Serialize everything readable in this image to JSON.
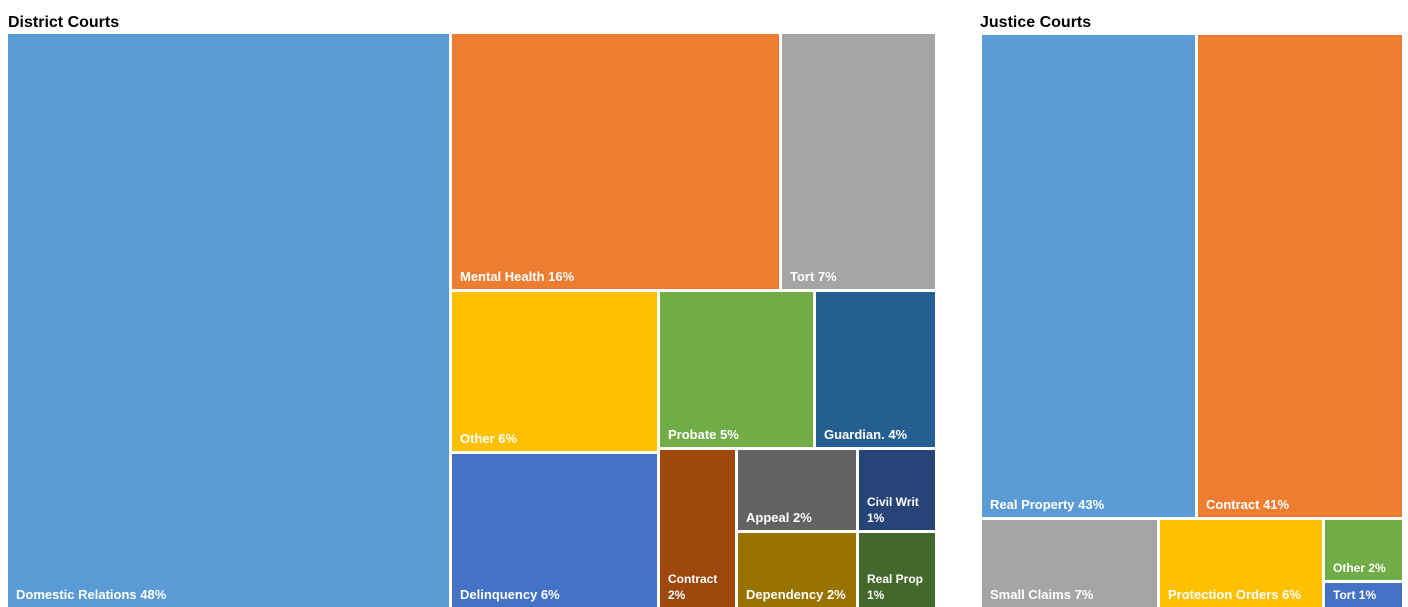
{
  "chart_data": [
    {
      "type": "treemap",
      "title": "District Courts",
      "categories": [
        "Domestic Relations",
        "Mental Health",
        "Tort",
        "Other",
        "Probate",
        "Guardian.",
        "Delinquency",
        "Contract",
        "Appeal",
        "Civil Writ",
        "Dependency",
        "Real Prop"
      ],
      "values": [
        48,
        16,
        7,
        6,
        5,
        4,
        6,
        2,
        2,
        1,
        2,
        1
      ],
      "value_labels": [
        "48%",
        "16%",
        "7%",
        "6%",
        "5%",
        "4%",
        "6%",
        "2%",
        "2%",
        "1%",
        "2%",
        "1%"
      ],
      "colors": [
        "#5b9bd5",
        "#ed7d31",
        "#a5a5a5",
        "#ffc000",
        "#70ad47",
        "#255e91",
        "#4472c4",
        "#9e480e",
        "#636363",
        "#264478",
        "#997300",
        "#43682b"
      ]
    },
    {
      "type": "treemap",
      "title": "Justice Courts",
      "categories": [
        "Real Property",
        "Contract",
        "Small Claims",
        "Protection Orders",
        "Other",
        "Tort"
      ],
      "values": [
        43,
        41,
        7,
        6,
        2,
        1
      ],
      "value_labels": [
        "43%",
        "41%",
        "7%",
        "6%",
        "2%",
        "1%"
      ],
      "colors": [
        "#5b9bd5",
        "#ed7d31",
        "#a5a5a5",
        "#ffc000",
        "#70ad47",
        "#4472c4"
      ]
    }
  ]
}
